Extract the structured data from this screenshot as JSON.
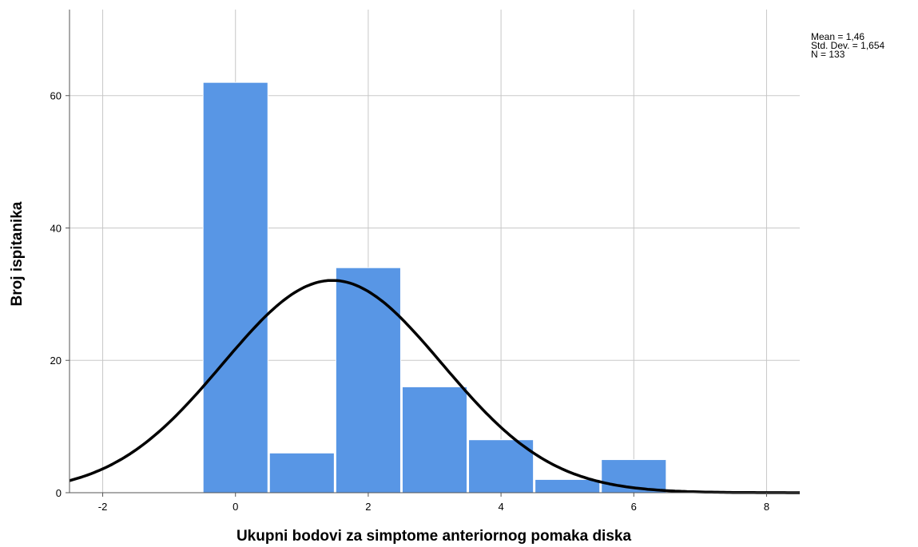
{
  "chart_data": {
    "type": "histogram",
    "xlabel": "Ukupni bodovi za simptome anteriornog pomaka diska",
    "ylabel": "Broj ispitanika",
    "xlim": [
      -2.5,
      8.5
    ],
    "ylim": [
      0,
      73
    ],
    "x_ticks": [
      -2,
      0,
      2,
      4,
      6,
      8
    ],
    "x_tick_labels": [
      "-2",
      "0",
      "2",
      "4",
      "6",
      "8"
    ],
    "y_ticks": [
      0,
      20,
      40,
      60
    ],
    "y_tick_labels": [
      "0",
      "20",
      "40",
      "60"
    ],
    "grid": true,
    "bins": [
      {
        "x": 0,
        "value": 62
      },
      {
        "x": 1,
        "value": 6
      },
      {
        "x": 2,
        "value": 34
      },
      {
        "x": 3,
        "value": 16
      },
      {
        "x": 4,
        "value": 8
      },
      {
        "x": 5,
        "value": 2
      },
      {
        "x": 6,
        "value": 5
      }
    ],
    "bin_width": 1,
    "bar_color": "#5896e5",
    "curve": {
      "type": "normal",
      "mean": 1.46,
      "sd": 1.654,
      "n": 133,
      "color": "#000000"
    },
    "stats": {
      "mean_text": "Mean = 1,46",
      "sd_text": "Std. Dev. = 1,654",
      "n_text": "N = 133"
    }
  }
}
